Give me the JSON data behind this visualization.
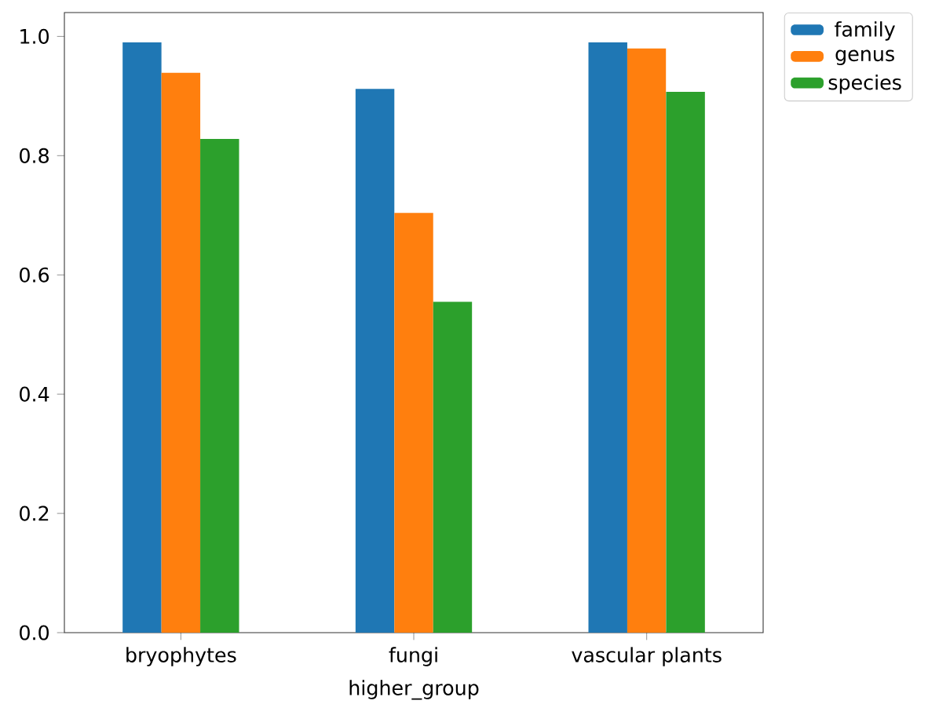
{
  "chart_data": {
    "type": "bar",
    "xlabel": "higher_group",
    "categories": [
      "bryophytes",
      "fungi",
      "vascular plants"
    ],
    "series": [
      {
        "name": "family",
        "color": "#1f77b4",
        "values": [
          0.99,
          0.912,
          0.99
        ]
      },
      {
        "name": "genus",
        "color": "#ff7f0e",
        "values": [
          0.939,
          0.704,
          0.98
        ]
      },
      {
        "name": "species",
        "color": "#2ca02c",
        "values": [
          0.828,
          0.555,
          0.907
        ]
      }
    ],
    "ylim": [
      0,
      1.04
    ],
    "yticks": [
      {
        "value": 0,
        "label": "0.0"
      },
      0.2,
      0.4,
      0.6,
      0.8,
      {
        "value": 1,
        "label": "1.0"
      }
    ],
    "legend": "top right",
    "grid": false
  }
}
